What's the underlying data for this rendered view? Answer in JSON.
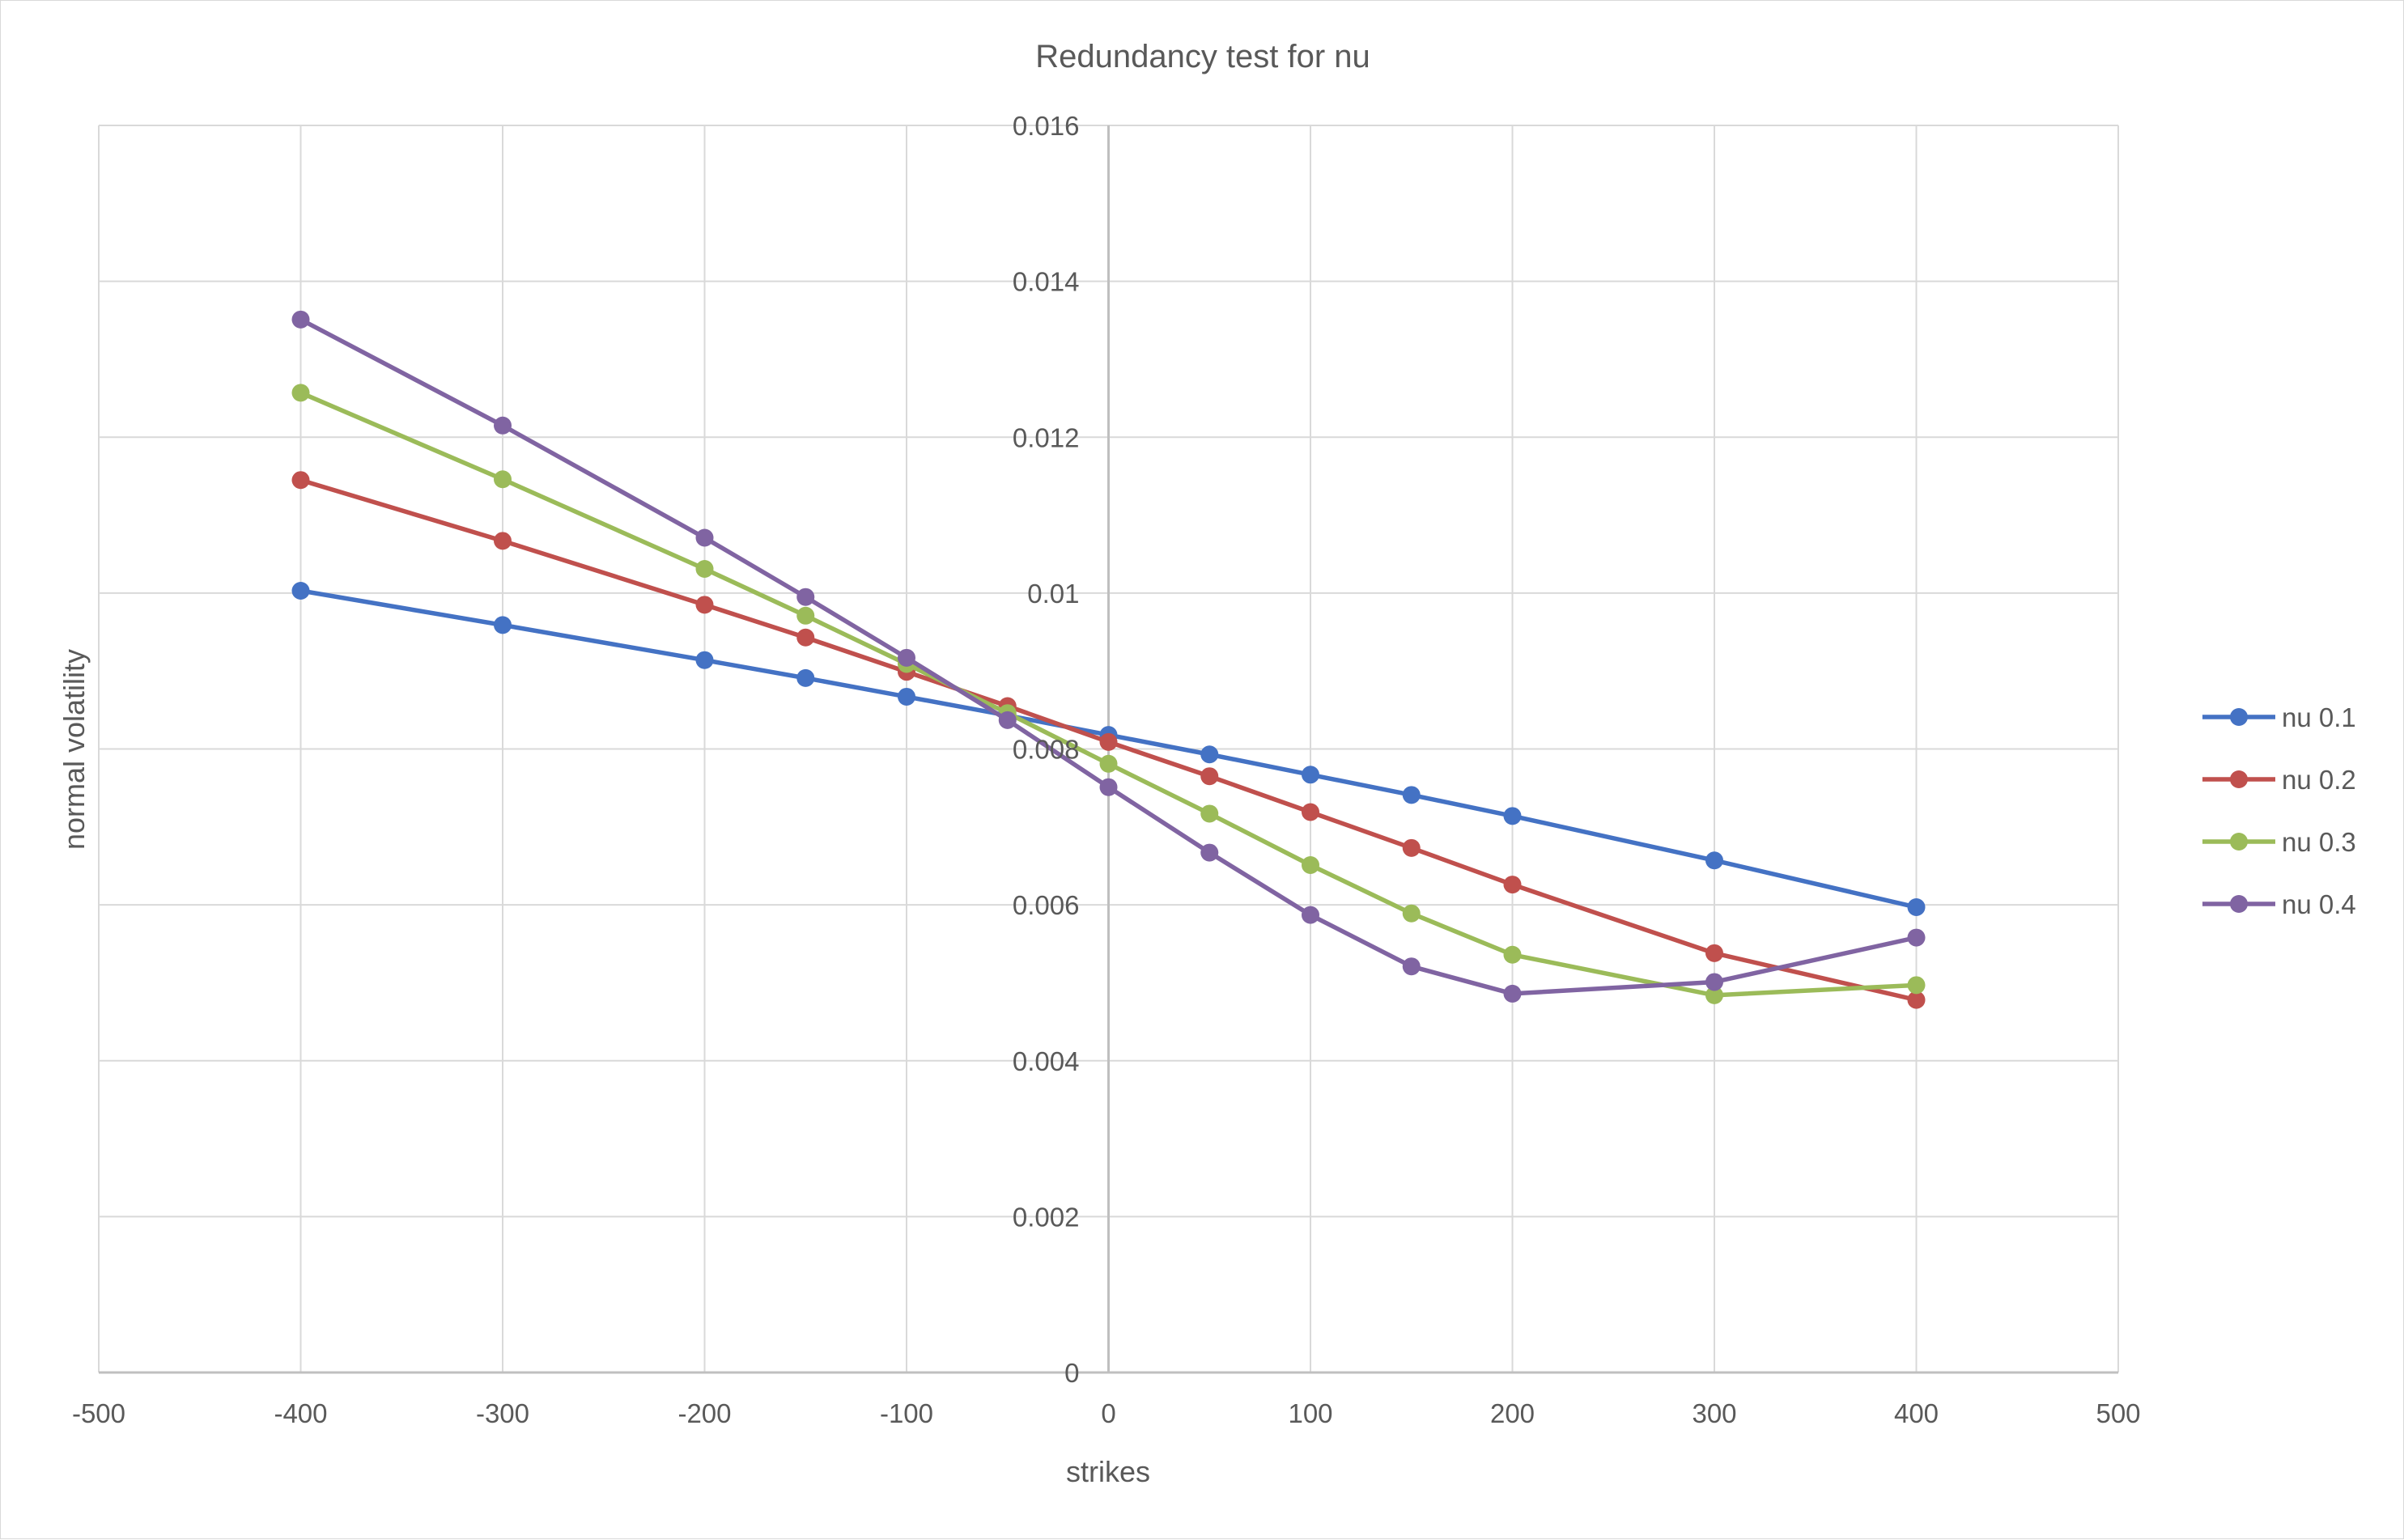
{
  "chart_data": {
    "type": "line",
    "title": "Redundancy test for nu",
    "xlabel": "strikes",
    "ylabel": "normal volatility",
    "xlim": [
      -500,
      500
    ],
    "ylim": [
      0,
      0.016
    ],
    "x_ticks": [
      "-500",
      "-400",
      "-300",
      "-200",
      "-100",
      "0",
      "100",
      "200",
      "300",
      "400",
      "500"
    ],
    "y_ticks": [
      "0",
      "0.002",
      "0.004",
      "0.006",
      "0.008",
      "0.01",
      "0.012",
      "0.014",
      "0.016"
    ],
    "grid": true,
    "legend_position": "right",
    "x": [
      -400,
      -300,
      -200,
      -150,
      -100,
      -50,
      0,
      50,
      100,
      150,
      200,
      300,
      400
    ],
    "series": [
      {
        "name": "nu 0.1",
        "color": "#4472c4",
        "values": [
          0.01003,
          0.00959,
          0.00914,
          0.00891,
          0.00867,
          0.00843,
          0.00818,
          0.00793,
          0.00767,
          0.00741,
          0.00714,
          0.00657,
          0.00597
        ]
      },
      {
        "name": "nu 0.2",
        "color": "#c0504d",
        "values": [
          0.01145,
          0.01067,
          0.00985,
          0.00943,
          0.00899,
          0.00855,
          0.00809,
          0.00765,
          0.00719,
          0.00673,
          0.00626,
          0.00538,
          0.00478
        ]
      },
      {
        "name": "nu 0.3",
        "color": "#9bbb59",
        "values": [
          0.01257,
          0.01146,
          0.01031,
          0.00971,
          0.00909,
          0.00846,
          0.00781,
          0.00717,
          0.00651,
          0.00589,
          0.00536,
          0.00484,
          0.00497
        ]
      },
      {
        "name": "nu 0.4",
        "color": "#8064a2",
        "values": [
          0.01351,
          0.01215,
          0.01071,
          0.00995,
          0.00917,
          0.00837,
          0.00751,
          0.00667,
          0.00587,
          0.00521,
          0.00486,
          0.00501,
          0.00558
        ]
      }
    ]
  }
}
